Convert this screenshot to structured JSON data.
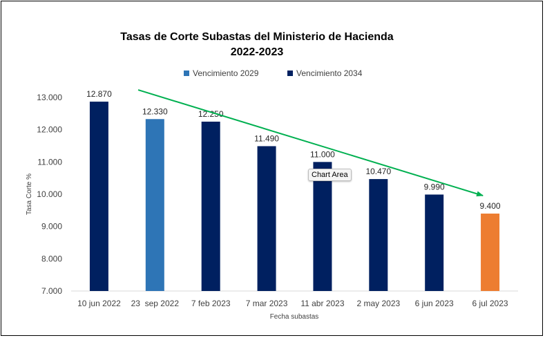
{
  "chart_data": {
    "type": "bar",
    "title_line1": "Tasas de Corte Subastas del Ministerio de Hacienda",
    "title_line2": "2022-2023",
    "xlabel": "Fecha subastas",
    "ylabel": "Tasa Corte %",
    "ylim": [
      7.0,
      13.0
    ],
    "yticks": [
      "7.000",
      "8.000",
      "9.000",
      "10.000",
      "11.000",
      "12.000",
      "13.000"
    ],
    "ytick_values": [
      7,
      8,
      9,
      10,
      11,
      12,
      13
    ],
    "grid": false,
    "legend_position": "top",
    "categories": [
      "10 jun 2022",
      "23  sep 2022",
      "7 feb 2023",
      "7 mar 2023",
      "11 abr 2023",
      "2 may 2023",
      "6 jun 2023",
      "6 jul 2023"
    ],
    "values": [
      12.87,
      12.33,
      12.25,
      11.49,
      11.0,
      10.47,
      9.99,
      9.4
    ],
    "data_labels": [
      "12.870",
      "12.330",
      "12.250",
      "11.490",
      "11.000",
      "10.470",
      "9.990",
      "9.400"
    ],
    "bar_series": [
      "Vencimiento 2034",
      "Vencimiento 2029",
      "Vencimiento 2034",
      "Vencimiento 2034",
      "Vencimiento 2034",
      "Vencimiento 2034",
      "Vencimiento 2034",
      "highlight"
    ],
    "series": [
      {
        "name": "Vencimiento 2029",
        "color": "#2E75B6"
      },
      {
        "name": "Vencimiento 2034",
        "color": "#002060"
      }
    ],
    "highlight_color": "#ED7D31",
    "highlight_label_color": "#00B050",
    "trend_arrow_color": "#00B050"
  },
  "tooltip": {
    "text": "Chart Area"
  }
}
